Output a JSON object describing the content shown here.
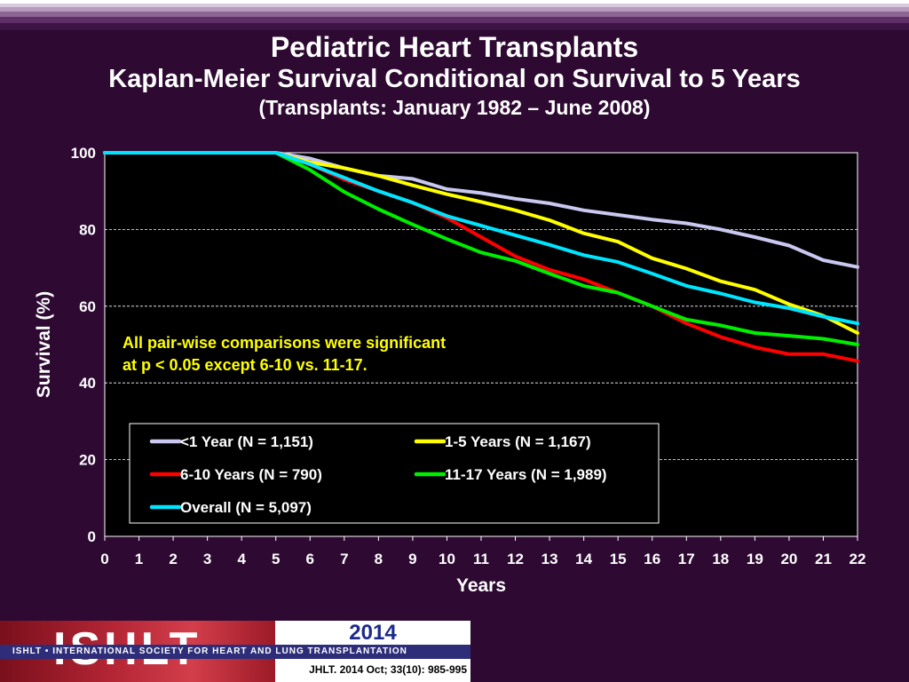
{
  "slide": {
    "title": "Pediatric Heart Transplants",
    "subtitle": "Kaplan-Meier Survival Conditional on Survival to 5 Years",
    "subsubtitle": "(Transplants: January 1982 – June 2008)"
  },
  "chart_data": {
    "type": "line",
    "xlabel": "Years",
    "ylabel": "Survival (%)",
    "xlim": [
      0,
      22
    ],
    "ylim": [
      0,
      100
    ],
    "x_ticks": [
      0,
      1,
      2,
      3,
      4,
      5,
      6,
      7,
      8,
      9,
      10,
      11,
      12,
      13,
      14,
      15,
      16,
      17,
      18,
      19,
      20,
      21,
      22
    ],
    "y_ticks": [
      0,
      20,
      40,
      60,
      80,
      100
    ],
    "grid": "horizontal dashed",
    "legend_placement": "lower-center",
    "annotation": [
      "All pair-wise comparisons were significant",
      "at p < 0.05 except 6-10 vs. 11-17."
    ],
    "series": [
      {
        "name": "<1 Year (N = 1,151)",
        "color": "#c8c8f0",
        "x": [
          0,
          1,
          2,
          3,
          4,
          5,
          6,
          7,
          8,
          9,
          10,
          11,
          12,
          13,
          14,
          15,
          16,
          17,
          18,
          19,
          20,
          21,
          22
        ],
        "values": [
          100,
          100,
          100,
          100,
          100,
          100,
          98.5,
          96,
          94,
          93.2,
          90.5,
          89.5,
          88,
          86.8,
          85,
          83.8,
          82.6,
          81.6,
          80,
          78,
          75.8,
          72,
          70.2
        ]
      },
      {
        "name": "1-5 Years (N = 1,167)",
        "color": "#ffff00",
        "x": [
          0,
          1,
          2,
          3,
          4,
          5,
          6,
          7,
          8,
          9,
          10,
          11,
          12,
          13,
          14,
          15,
          16,
          17,
          18,
          19,
          20,
          21,
          22
        ],
        "values": [
          100,
          100,
          100,
          100,
          100,
          100,
          97.5,
          96,
          94,
          91.5,
          89.2,
          87.2,
          85,
          82.4,
          79,
          76.8,
          72.5,
          69.8,
          66.5,
          64.3,
          60.5,
          57.5,
          53
        ]
      },
      {
        "name": "6-10 Years (N = 790)",
        "color": "#ff0000",
        "x": [
          0,
          1,
          2,
          3,
          4,
          5,
          6,
          7,
          8,
          9,
          10,
          11,
          12,
          13,
          14,
          15,
          16,
          17,
          18,
          19,
          20,
          21,
          22
        ],
        "values": [
          100,
          100,
          100,
          100,
          100,
          100,
          97,
          93,
          90,
          87,
          83,
          78,
          73,
          69.5,
          67,
          63.5,
          60,
          55.5,
          52,
          49.3,
          47.5,
          47.5,
          45.7
        ]
      },
      {
        "name": "11-17 Years (N = 1,989)",
        "color": "#00ee00",
        "x": [
          0,
          1,
          2,
          3,
          4,
          5,
          6,
          7,
          8,
          9,
          10,
          11,
          12,
          13,
          14,
          15,
          16,
          17,
          18,
          19,
          20,
          21,
          22
        ],
        "values": [
          100,
          100,
          100,
          100,
          100,
          100,
          95.5,
          89.8,
          85.3,
          81.3,
          77.5,
          74,
          71.8,
          68.5,
          65.3,
          63.5,
          60,
          56.5,
          55,
          53,
          52.3,
          51.5,
          50
        ]
      },
      {
        "name": "Overall (N = 5,097)",
        "color": "#00e5ff",
        "x": [
          0,
          1,
          2,
          3,
          4,
          5,
          6,
          7,
          8,
          9,
          10,
          11,
          12,
          13,
          14,
          15,
          16,
          17,
          18,
          19,
          20,
          21,
          22
        ],
        "values": [
          100,
          100,
          100,
          100,
          100,
          100,
          97,
          93.5,
          90,
          87,
          83.5,
          81,
          78.5,
          76,
          73.3,
          71.5,
          68.5,
          65.3,
          63.3,
          61,
          59.5,
          57.3,
          55.5
        ]
      }
    ]
  },
  "footer": {
    "logo_text": "ISHLT",
    "year": "2014",
    "society": "ISHLT • INTERNATIONAL SOCIETY FOR HEART AND LUNG TRANSPLANTATION",
    "citation": "JHLT. 2014 Oct; 33(10): 985-995"
  }
}
